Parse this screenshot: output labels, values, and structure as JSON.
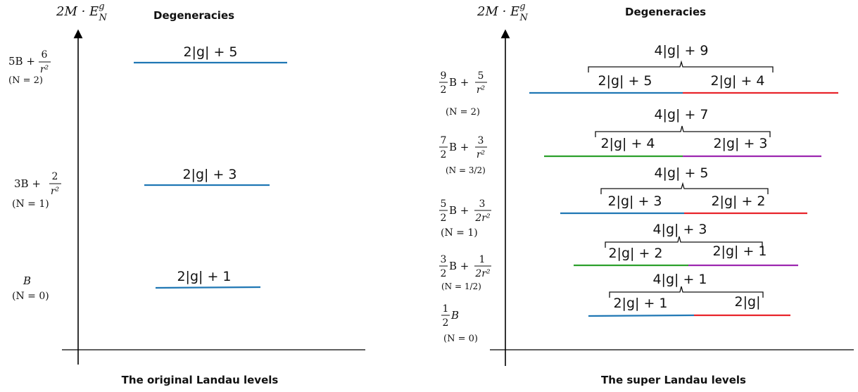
{
  "colors": {
    "blue": "#1f77b4",
    "red": "#e8242b",
    "green": "#2ca02c",
    "purple": "#9c27b0",
    "axis": "#000000"
  },
  "left": {
    "axis_label": "2M · E",
    "axis_label_sup": "g",
    "axis_label_sub": "N",
    "degeneracies_title": "Degeneracies",
    "caption": "The original Landau levels",
    "levels": [
      {
        "energy_main": "5B +",
        "frac_num": "6",
        "frac_den": "r²",
        "n_label": "(N = 2)",
        "degeneracy": "2|g| + 5",
        "color": "blue"
      },
      {
        "energy_main": "3B +",
        "frac_num": "2",
        "frac_den": "r²",
        "n_label": "(N = 1)",
        "degeneracy": "2|g| + 3",
        "color": "blue"
      },
      {
        "energy_main": "B",
        "frac_num": "",
        "frac_den": "",
        "n_label": "(N = 0)",
        "degeneracy": "2|g| + 1",
        "color": "blue"
      }
    ]
  },
  "right": {
    "axis_label": "2M · E",
    "axis_label_sup": "g",
    "axis_label_sub": "N",
    "degeneracies_title": "Degeneracies",
    "caption": "The super Landau levels",
    "levels": [
      {
        "coef_num": "9",
        "coef_den": "2",
        "mid": "B +",
        "frac_num": "5",
        "frac_den": "r²",
        "n_label": "(N = 2)",
        "total": "4|g| + 9",
        "left_deg": "2|g| + 5",
        "right_deg": "2|g| + 4",
        "left_color": "blue",
        "right_color": "red"
      },
      {
        "coef_num": "7",
        "coef_den": "2",
        "mid": "B +",
        "frac_num": "3",
        "frac_den": "r²",
        "n_label": "(N = 3/2)",
        "total": "4|g| + 7",
        "left_deg": "2|g| + 4",
        "right_deg": "2|g| + 3",
        "left_color": "green",
        "right_color": "purple"
      },
      {
        "coef_num": "5",
        "coef_den": "2",
        "mid": "B +",
        "frac_num": "3",
        "frac_den": "2r²",
        "n_label": "(N = 1)",
        "total": "4|g| + 5",
        "left_deg": "2|g| + 3",
        "right_deg": "2|g| + 2",
        "left_color": "blue",
        "right_color": "red"
      },
      {
        "coef_num": "3",
        "coef_den": "2",
        "mid": "B +",
        "frac_num": "1",
        "frac_den": "2r²",
        "n_label": "(N = 1/2)",
        "total": "4|g| + 3",
        "left_deg": "2|g| + 2",
        "right_deg": "2|g| + 1",
        "left_color": "green",
        "right_color": "purple"
      },
      {
        "coef_num": "1",
        "coef_den": "2",
        "mid": "B",
        "frac_num": "",
        "frac_den": "",
        "n_label": "(N = 0)",
        "total": "4|g| + 1",
        "left_deg": "2|g| + 1",
        "right_deg": "2|g|",
        "left_color": "blue",
        "right_color": "red"
      }
    ]
  }
}
